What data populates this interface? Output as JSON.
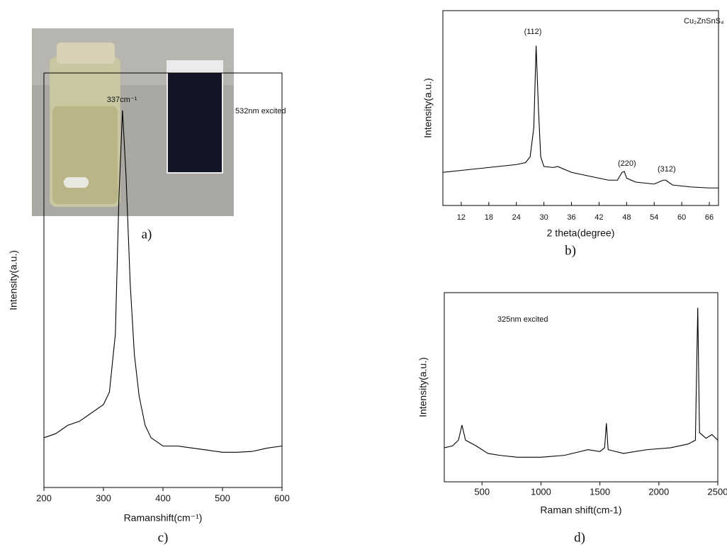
{
  "photo_caption": "a)",
  "chart_data": [
    {
      "type": "line",
      "caption": "b)",
      "x_label": "2 theta(degree)",
      "y_label": "Intensity(a.u.)",
      "annotations": [
        "(112)",
        "(220)",
        "(312)",
        "Cu₂ZnSnS₄"
      ],
      "x": [
        8,
        12,
        16,
        20,
        24,
        26,
        27,
        27.8,
        28.3,
        28.8,
        29.3,
        30,
        32,
        33,
        36,
        40,
        44,
        46,
        47,
        47.5,
        48,
        50,
        54,
        56,
        56.5,
        58,
        62,
        66,
        68
      ],
      "values": [
        17,
        18,
        19,
        20,
        21,
        22,
        25,
        40,
        82,
        50,
        25,
        20,
        19.5,
        20,
        17,
        15,
        13,
        13,
        17,
        17.5,
        14,
        12,
        11,
        13,
        13,
        10.5,
        9.5,
        9,
        9
      ],
      "color": "#000000",
      "xlim": [
        8,
        68
      ],
      "ylim": [
        0,
        100
      ],
      "xticks": [
        12,
        18,
        24,
        30,
        36,
        42,
        48,
        54,
        60,
        66
      ]
    },
    {
      "type": "line",
      "caption": "c)",
      "x_label": "Ramanshift(cm⁻¹)",
      "y_label": "Intensity(a.u.)",
      "annotations": [
        "337cm⁻¹",
        "532nm excited"
      ],
      "x": [
        200,
        220,
        240,
        260,
        280,
        300,
        310,
        320,
        326,
        332,
        338,
        345,
        352,
        360,
        370,
        380,
        400,
        425,
        450,
        475,
        500,
        525,
        550,
        575,
        600
      ],
      "values": [
        12,
        13,
        15,
        16,
        18,
        20,
        23,
        37,
        70,
        91,
        75,
        49,
        32,
        22,
        15,
        12,
        10,
        10,
        9.5,
        9,
        8.5,
        8.5,
        8.7,
        9.5,
        10
      ],
      "color": "#000000",
      "xlim": [
        200,
        600
      ],
      "ylim": [
        0,
        100
      ],
      "xticks": [
        200,
        300,
        400,
        500,
        600
      ]
    },
    {
      "type": "line",
      "caption": "d)",
      "x_label": "Raman shift(cm-1)",
      "y_label": "Intensity(a.u.)",
      "annotations": [
        "325nm  excited"
      ],
      "x": [
        180,
        250,
        300,
        330,
        360,
        450,
        550,
        650,
        800,
        1000,
        1200,
        1400,
        1500,
        1540,
        1555,
        1570,
        1700,
        1900,
        2100,
        2250,
        2310,
        2330,
        2345,
        2400,
        2450,
        2500
      ],
      "values": [
        18,
        19,
        22,
        30,
        22,
        19,
        15,
        14,
        13,
        13,
        14,
        17,
        16,
        18,
        31,
        17,
        15,
        17,
        18,
        20,
        22,
        92,
        26,
        23,
        25,
        22
      ],
      "color": "#000000",
      "xlim": [
        180,
        2500
      ],
      "ylim": [
        0,
        100
      ],
      "xticks": [
        500,
        1000,
        1500,
        2000,
        2500
      ]
    }
  ]
}
